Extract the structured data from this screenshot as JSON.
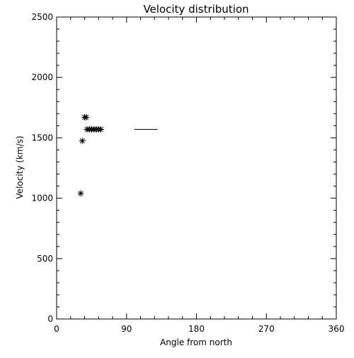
{
  "chart_data": {
    "type": "scatter",
    "title": "Velocity distribution",
    "xlabel": "Angle from north",
    "ylabel": "Velocity (km/s)",
    "xlim": [
      0,
      360
    ],
    "ylim": [
      0,
      2500
    ],
    "x_ticks": [
      0,
      90,
      180,
      270,
      360
    ],
    "x_tick_labels": [
      "0",
      "90",
      "180",
      "270",
      "360"
    ],
    "y_ticks": [
      0,
      500,
      1000,
      1500,
      2000,
      2500
    ],
    "y_tick_labels": [
      "0",
      "500",
      "1000",
      "1500",
      "2000",
      "2500"
    ],
    "grid": false,
    "legend": "none",
    "marker": "asterisk",
    "colors": {
      "axis": "#000000",
      "marker": "#000000",
      "background": "#ffffff"
    },
    "series": [
      {
        "points": [
          {
            "x": 31,
            "y": 1040
          },
          {
            "x": 33,
            "y": 1475
          },
          {
            "x": 36,
            "y": 1670
          },
          {
            "x": 38,
            "y": 1670
          },
          {
            "x": 39,
            "y": 1570
          },
          {
            "x": 42,
            "y": 1570
          },
          {
            "x": 45,
            "y": 1570
          },
          {
            "x": 48,
            "y": 1570
          },
          {
            "x": 51,
            "y": 1570
          },
          {
            "x": 54,
            "y": 1570
          },
          {
            "x": 57,
            "y": 1570
          }
        ]
      }
    ],
    "annotations": [
      {
        "type": "hline",
        "x_start": 100,
        "x_end": 130,
        "y": 1570
      }
    ]
  }
}
